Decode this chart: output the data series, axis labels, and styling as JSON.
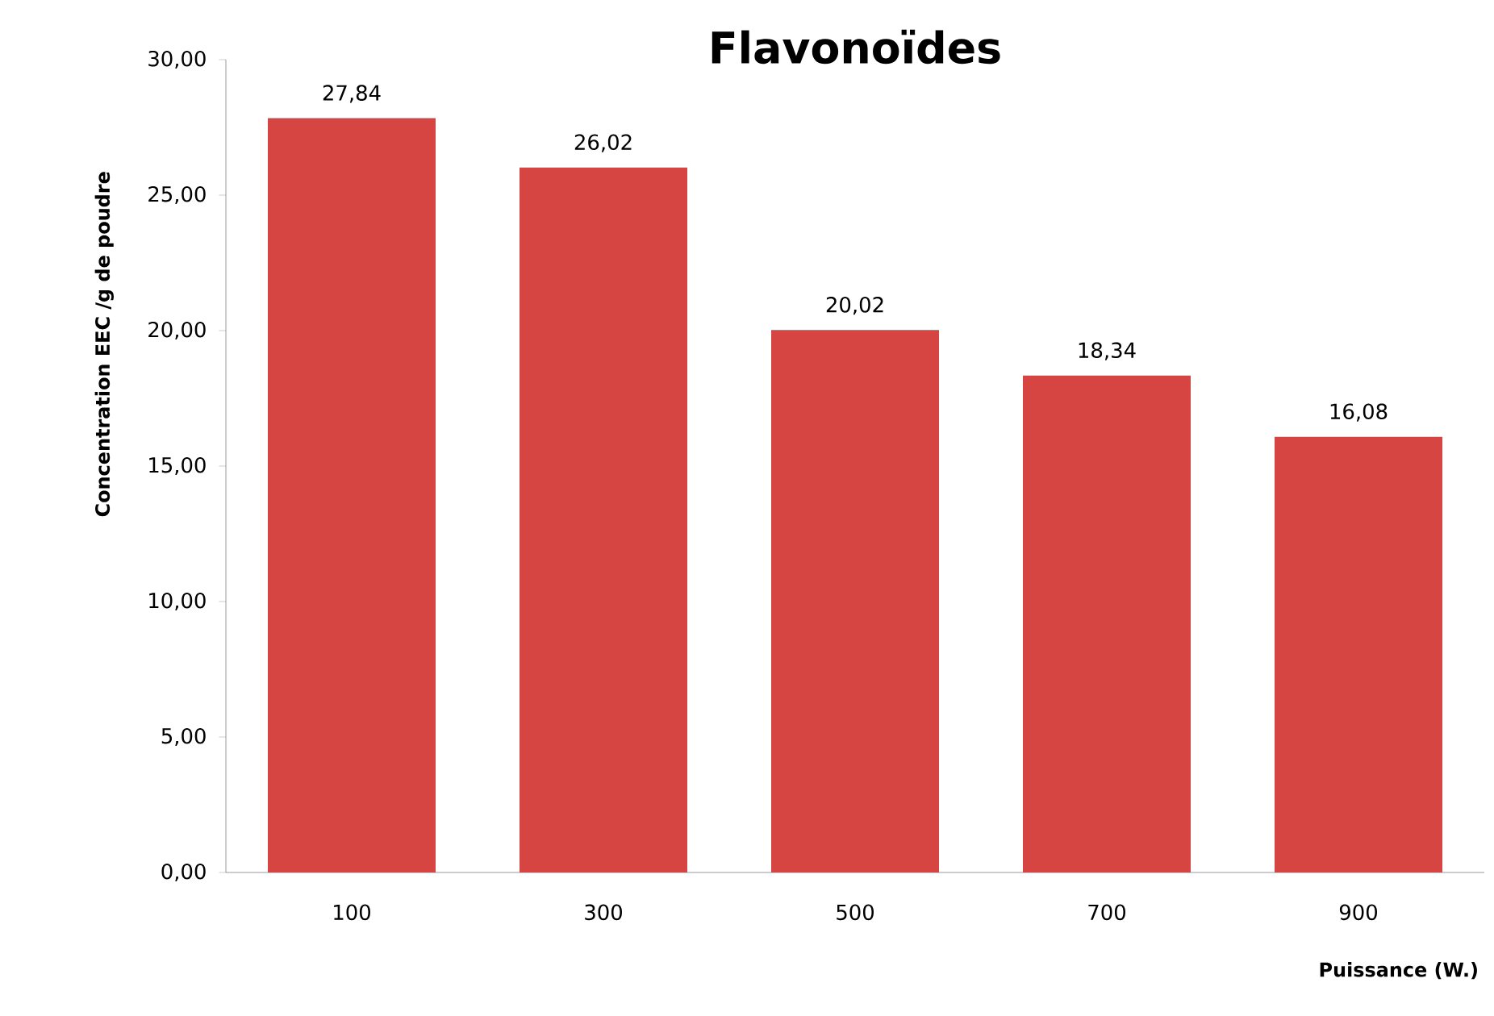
{
  "chart_data": {
    "type": "bar",
    "title": "Flavonoïdes",
    "xlabel": "Puissance  (W.)",
    "ylabel": "Concentration  EEC /g de poudre",
    "categories": [
      "100",
      "300",
      "500",
      "700",
      "900"
    ],
    "values": [
      27.84,
      26.02,
      20.02,
      18.34,
      16.08
    ],
    "value_labels": [
      "27,84",
      "26,02",
      "20,02",
      "18,34",
      "16,08"
    ],
    "color": "#d64541",
    "ylim": [
      0,
      30
    ],
    "yticks": [
      {
        "value": 0,
        "label": "0,00"
      },
      {
        "value": 5,
        "label": "5,00"
      },
      {
        "value": 10,
        "label": "10,00"
      },
      {
        "value": 15,
        "label": "15,00"
      },
      {
        "value": 20,
        "label": "20,00"
      },
      {
        "value": 25,
        "label": "25,00"
      },
      {
        "value": 30,
        "label": "30,00"
      }
    ],
    "grid": false
  }
}
